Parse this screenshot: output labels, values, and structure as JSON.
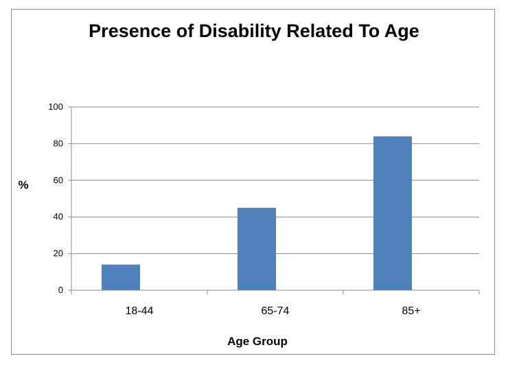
{
  "chart_data": {
    "type": "bar",
    "title": "Presence of Disability Related To Age",
    "xlabel": "Age Group",
    "ylabel": "%",
    "categories": [
      "18-44",
      "65-74",
      "85+"
    ],
    "values": [
      14,
      45,
      84
    ],
    "ylim": [
      0,
      100
    ],
    "yticks": [
      0,
      20,
      40,
      60,
      80,
      100
    ],
    "grid": true,
    "legend": "none",
    "bar_color": "#4f81bd"
  }
}
